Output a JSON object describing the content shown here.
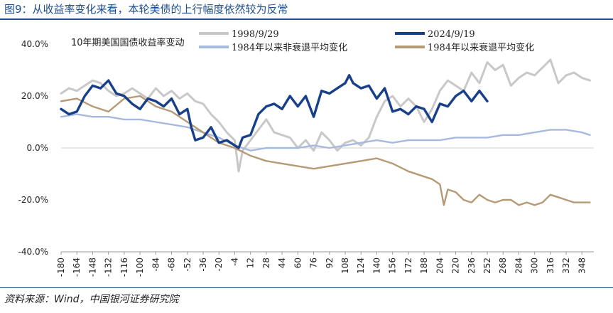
{
  "figure": {
    "title": "图9：从收益率变化来看，本轮美债的上行幅度依然较为反常",
    "source": "资料来源：Wind，中国银河证券研究院"
  },
  "chart_data": {
    "type": "line",
    "title": "10年期美国国债收益率变动",
    "xlabel": "",
    "ylabel": "",
    "ylim": [
      -40,
      40
    ],
    "xlim": [
      -180,
      360
    ],
    "y_ticks": [
      40,
      20,
      0,
      -20,
      -40
    ],
    "y_tick_labels": [
      "40.0%",
      "20.0%",
      "0.0%",
      "-20.0%",
      "-40.0%"
    ],
    "x_ticks": [
      -180,
      -164,
      -148,
      -132,
      -116,
      -100,
      -84,
      -68,
      -52,
      -36,
      -20,
      -4,
      12,
      28,
      44,
      60,
      76,
      92,
      108,
      124,
      140,
      156,
      172,
      188,
      204,
      220,
      236,
      252,
      268,
      284,
      300,
      316,
      332,
      348
    ],
    "legend_position": "top",
    "series": [
      {
        "name": "1998/9/29",
        "color": "#c8c8c8",
        "x": [
          -180,
          -172,
          -164,
          -156,
          -148,
          -140,
          -132,
          -124,
          -116,
          -108,
          -100,
          -92,
          -84,
          -76,
          -68,
          -60,
          -52,
          -44,
          -36,
          -28,
          -20,
          -12,
          -4,
          0,
          4,
          12,
          20,
          28,
          36,
          44,
          52,
          60,
          68,
          76,
          84,
          92,
          100,
          108,
          116,
          124,
          132,
          140,
          148,
          156,
          164,
          172,
          180,
          188,
          196,
          204,
          212,
          220,
          228,
          236,
          244,
          252,
          260,
          268,
          276,
          284,
          292,
          300,
          308,
          316,
          324,
          332,
          340,
          348,
          356
        ],
        "values": [
          21,
          23,
          22,
          24,
          26,
          25,
          22,
          20,
          21,
          23,
          21,
          19,
          23,
          20,
          22,
          19,
          21,
          18,
          17,
          13,
          10,
          6,
          3,
          -9,
          -1,
          3,
          7,
          11,
          6,
          5,
          4,
          0,
          3,
          -1,
          6,
          3,
          -1,
          2,
          3,
          1,
          4,
          12,
          18,
          20,
          16,
          19,
          16,
          10,
          15,
          22,
          26,
          24,
          22,
          29,
          25,
          33,
          30,
          32,
          24,
          27,
          29,
          28,
          31,
          34,
          25,
          28,
          29,
          27,
          26
        ]
      },
      {
        "name": "2024/9/19",
        "color": "#173f8a",
        "x": [
          -180,
          -172,
          -164,
          -156,
          -148,
          -140,
          -132,
          -124,
          -116,
          -108,
          -100,
          -92,
          -84,
          -76,
          -68,
          -60,
          -52,
          -48,
          -44,
          -36,
          -28,
          -20,
          -12,
          -4,
          0,
          4,
          12,
          20,
          28,
          36,
          44,
          52,
          60,
          68,
          76,
          84,
          92,
          100,
          108,
          112,
          116,
          124,
          132,
          140,
          148,
          156,
          164,
          172,
          180,
          188,
          196,
          204,
          212,
          220,
          228,
          236,
          244,
          252
        ],
        "values": [
          15,
          13,
          14,
          20,
          24,
          23,
          26,
          21,
          20,
          17,
          15,
          19,
          18,
          16,
          19,
          13,
          15,
          8,
          3,
          4,
          8,
          2,
          3,
          1,
          0,
          4,
          5,
          13,
          16,
          17,
          15,
          20,
          16,
          20,
          12,
          22,
          21,
          23,
          25,
          28,
          25,
          23,
          24,
          19,
          23,
          14,
          15,
          13,
          16,
          15,
          10,
          17,
          16,
          20,
          22,
          18,
          22,
          18
        ]
      },
      {
        "name": "1984年以来非衰退平均变化",
        "color": "#a6b9de",
        "x": [
          -180,
          -164,
          -148,
          -132,
          -116,
          -100,
          -84,
          -68,
          -52,
          -36,
          -20,
          -4,
          12,
          28,
          44,
          60,
          76,
          92,
          108,
          124,
          140,
          156,
          172,
          188,
          204,
          220,
          236,
          252,
          268,
          284,
          300,
          316,
          332,
          348,
          356
        ],
        "values": [
          12,
          13,
          12,
          12,
          11,
          11,
          10,
          9,
          8,
          6,
          4,
          1,
          -1,
          0,
          0,
          0,
          1,
          0,
          1,
          2,
          3,
          2,
          3,
          3,
          3,
          4,
          4,
          4,
          5,
          5,
          6,
          7,
          7,
          6,
          5
        ]
      },
      {
        "name": "1984年以来衰退平均变化",
        "color": "#b59a75",
        "x": [
          -180,
          -164,
          -148,
          -132,
          -116,
          -100,
          -84,
          -68,
          -52,
          -36,
          -20,
          -4,
          12,
          28,
          44,
          60,
          76,
          92,
          108,
          124,
          140,
          156,
          172,
          188,
          196,
          204,
          208,
          212,
          220,
          228,
          236,
          244,
          252,
          260,
          268,
          276,
          284,
          292,
          300,
          308,
          316,
          324,
          332,
          340,
          348,
          356
        ],
        "values": [
          18,
          19,
          16,
          14,
          19,
          20,
          16,
          14,
          10,
          6,
          2,
          0,
          -3,
          -5,
          -6,
          -7,
          -8,
          -7,
          -6,
          -5,
          -4,
          -6,
          -9,
          -11,
          -12,
          -14,
          -22,
          -16,
          -17,
          -20,
          -21,
          -18,
          -20,
          -21,
          -20,
          -20,
          -22,
          -21,
          -22,
          -21,
          -18,
          -19,
          -20,
          -21,
          -21,
          -21
        ]
      }
    ]
  }
}
